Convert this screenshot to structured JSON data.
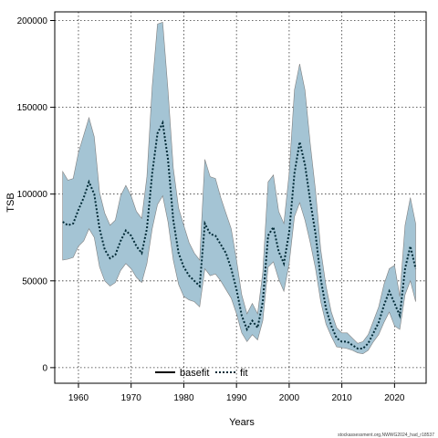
{
  "chart_data": {
    "type": "line",
    "xlabel": "Years",
    "ylabel": "TSB",
    "xlim": [
      1955.5,
      2026
    ],
    "ylim": [
      -9000,
      205000
    ],
    "xticks": [
      1960,
      1970,
      1980,
      1990,
      2000,
      2010,
      2020
    ],
    "yticks": [
      0,
      50000,
      100000,
      150000,
      200000
    ],
    "grid": true,
    "legend_position": "bottom-center",
    "colors": {
      "band_fill": "#a4c4d4",
      "band_stroke": "#808080",
      "fit_line": "#002a36",
      "basefit_line": "#000000"
    },
    "series": [
      {
        "name": "basefit",
        "style": "solid",
        "x": [],
        "values": []
      },
      {
        "name": "fit",
        "style": "dotted",
        "x": [
          1957,
          1958,
          1959,
          1960,
          1961,
          1962,
          1963,
          1964,
          1965,
          1966,
          1967,
          1968,
          1969,
          1970,
          1971,
          1972,
          1973,
          1974,
          1975,
          1976,
          1977,
          1978,
          1979,
          1980,
          1981,
          1982,
          1983,
          1984,
          1985,
          1986,
          1987,
          1988,
          1989,
          1990,
          1991,
          1992,
          1993,
          1994,
          1995,
          1996,
          1997,
          1998,
          1999,
          2000,
          2001,
          2002,
          2003,
          2004,
          2005,
          2006,
          2007,
          2008,
          2009,
          2010,
          2011,
          2012,
          2013,
          2014,
          2015,
          2016,
          2017,
          2018,
          2019,
          2020,
          2021,
          2022,
          2023,
          2024
        ],
        "values": [
          84000,
          82000,
          83000,
          91000,
          98000,
          107000,
          100000,
          80000,
          68000,
          63000,
          65000,
          73000,
          79000,
          76000,
          70000,
          66000,
          80000,
          112000,
          135000,
          141000,
          120000,
          85000,
          66000,
          58000,
          53000,
          50000,
          47000,
          83000,
          77000,
          76000,
          71000,
          66000,
          57000,
          45000,
          30000,
          22000,
          27000,
          23000,
          38000,
          76000,
          81000,
          67000,
          60000,
          78000,
          112000,
          130000,
          117000,
          96000,
          77000,
          51000,
          34000,
          24000,
          17000,
          15000,
          15000,
          13000,
          11000,
          11000,
          14000,
          20000,
          26000,
          36000,
          44000,
          37000,
          30000,
          57000,
          70000,
          57000
        ]
      },
      {
        "name": "upper",
        "x": [
          1957,
          1958,
          1959,
          1960,
          1961,
          1962,
          1963,
          1964,
          1965,
          1966,
          1967,
          1968,
          1969,
          1970,
          1971,
          1972,
          1973,
          1974,
          1975,
          1976,
          1977,
          1978,
          1979,
          1980,
          1981,
          1982,
          1983,
          1984,
          1985,
          1986,
          1987,
          1988,
          1989,
          1990,
          1991,
          1992,
          1993,
          1994,
          1995,
          1996,
          1997,
          1998,
          1999,
          2000,
          2001,
          2002,
          2003,
          2004,
          2005,
          2006,
          2007,
          2008,
          2009,
          2010,
          2011,
          2012,
          2013,
          2014,
          2015,
          2016,
          2017,
          2018,
          2019,
          2020,
          2021,
          2022,
          2023,
          2024
        ],
        "values": [
          113000,
          108000,
          109000,
          124000,
          134000,
          144000,
          133000,
          101000,
          89000,
          82000,
          85000,
          99000,
          105000,
          99000,
          90000,
          86000,
          110000,
          162000,
          198000,
          199000,
          160000,
          115000,
          92000,
          82000,
          72000,
          66000,
          62000,
          120000,
          110000,
          109000,
          98000,
          89000,
          80000,
          62000,
          42000,
          31000,
          37000,
          31000,
          55000,
          107000,
          111000,
          90000,
          83000,
          112000,
          160000,
          175000,
          160000,
          129000,
          102000,
          68000,
          47000,
          32000,
          23000,
          20000,
          20000,
          17000,
          14000,
          15000,
          19000,
          27000,
          35000,
          48000,
          57000,
          59000,
          41000,
          82000,
          98000,
          83000
        ]
      },
      {
        "name": "lower",
        "x": [
          1957,
          1958,
          1959,
          1960,
          1961,
          1962,
          1963,
          1964,
          1965,
          1966,
          1967,
          1968,
          1969,
          1970,
          1971,
          1972,
          1973,
          1974,
          1975,
          1976,
          1977,
          1978,
          1979,
          1980,
          1981,
          1982,
          1983,
          1984,
          1985,
          1986,
          1987,
          1988,
          1989,
          1990,
          1991,
          1992,
          1993,
          1994,
          1995,
          1996,
          1997,
          1998,
          1999,
          2000,
          2001,
          2002,
          2003,
          2004,
          2005,
          2006,
          2007,
          2008,
          2009,
          2010,
          2011,
          2012,
          2013,
          2014,
          2015,
          2016,
          2017,
          2018,
          2019,
          2020,
          2021,
          2022,
          2023,
          2024
        ],
        "values": [
          62000,
          62500,
          63500,
          70000,
          73000,
          80000,
          75000,
          58000,
          50000,
          47000,
          49000,
          56000,
          60000,
          57000,
          52000,
          49000,
          60000,
          80000,
          94000,
          99000,
          84000,
          62000,
          48000,
          41000,
          39000,
          38000,
          35000,
          57000,
          53000,
          54000,
          50000,
          45000,
          40000,
          31000,
          20000,
          15000,
          19000,
          16000,
          27000,
          58000,
          61000,
          51000,
          44000,
          60000,
          87000,
          95000,
          85000,
          72000,
          57000,
          38000,
          25000,
          18000,
          12000,
          11500,
          11000,
          10000,
          8500,
          8000,
          10000,
          15000,
          19000,
          26000,
          32000,
          24000,
          22000,
          42000,
          50000,
          38000
        ]
      }
    ],
    "watermark": "stockassessment.org,NWWG2024_had_r18537"
  }
}
